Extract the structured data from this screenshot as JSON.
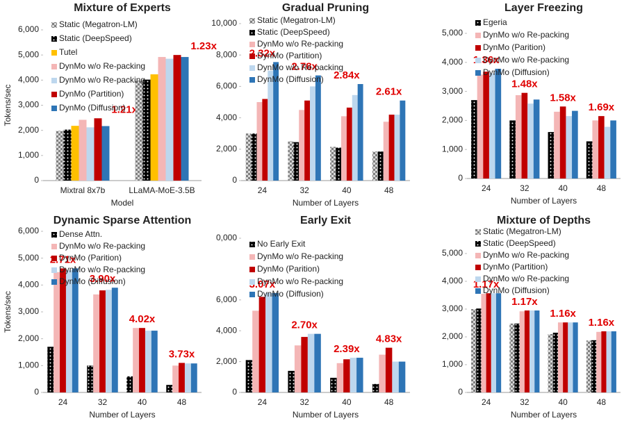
{
  "chart_data": [
    {
      "type": "bar",
      "title": "Mixture of Experts",
      "xlabel": "Model",
      "ylabel": "Tokens/sec",
      "legend": "upper left",
      "categories": [
        "Mixtral 8x7b",
        "LLaMA-MoE-3.5B"
      ],
      "ylim": [
        0,
        6000
      ],
      "yticks": [
        0,
        {
          "value": 1000,
          "label": "1,000"
        },
        {
          "value": 2000,
          "label": "2,000"
        },
        {
          "value": 3000,
          "label": "3,000"
        },
        {
          "value": 4000,
          "label": "4,000"
        },
        {
          "value": 5000,
          "label": "5,000"
        },
        {
          "value": 6000,
          "label": "6,000"
        }
      ],
      "annotations": [
        "1.21x",
        "1.23x"
      ],
      "series": [
        {
          "name": "Static (Megatron-LM)",
          "color": "#8c8c8c",
          "pattern": "checker",
          "values": [
            1980,
            3980
          ]
        },
        {
          "name": "Static (DeepSpeed)",
          "color": "#000000",
          "pattern": "dots",
          "values": [
            2030,
            4020
          ]
        },
        {
          "name": "Tutel",
          "color": "#ffc000",
          "values": [
            2180,
            4230
          ]
        },
        {
          "name": "DynMo w/o Re-packing",
          "color": "#f4b6b6",
          "values": [
            2420,
            4920
          ]
        },
        {
          "name": "DynMo w/o Re-packing",
          "color": "#bdd7ee",
          "values": [
            2120,
            4850
          ]
        },
        {
          "name": "DynMo (Partition)",
          "color": "#c00000",
          "values": [
            2480,
            5000
          ]
        },
        {
          "name": "DynMo (Diffusion)",
          "color": "#2e75b6",
          "values": [
            2170,
            4920
          ]
        }
      ]
    },
    {
      "type": "bar",
      "title": "Gradual Pruning",
      "xlabel": "Number of Layers",
      "legend": "upper left",
      "categories": [
        "24",
        "32",
        "40",
        "48"
      ],
      "ylim": [
        0,
        10000
      ],
      "yticks": [
        0,
        {
          "value": 2000,
          "label": "2,000"
        },
        {
          "value": 4000,
          "label": "4,000"
        },
        {
          "value": 6000,
          "label": "6,000"
        },
        {
          "value": 8000,
          "label": "8,000"
        },
        {
          "value": 10000,
          "label": "10,000"
        }
      ],
      "annotations": [
        "2.32x",
        "2.78x",
        "2.84x",
        "2.61x"
      ],
      "series": [
        {
          "name": "Static (Megatron-LM)",
          "color": "#8c8c8c",
          "pattern": "checker",
          "values": [
            3000,
            2500,
            2150,
            1850
          ]
        },
        {
          "name": "Static (DeepSpeed)",
          "color": "#000000",
          "pattern": "dots",
          "values": [
            3000,
            2450,
            2100,
            1850
          ]
        },
        {
          "name": "DynMo w/o Re-packing",
          "color": "#f4b6b6",
          "values": [
            5000,
            4500,
            4100,
            3750
          ]
        },
        {
          "name": "DynMo (Partition)",
          "color": "#c00000",
          "values": [
            5200,
            5100,
            4650,
            4200
          ]
        },
        {
          "name": "DynMo w/o Re-packing",
          "color": "#bdd7ee",
          "values": [
            7000,
            6000,
            5450,
            4200
          ]
        },
        {
          "name": "DynMo (Diffusion)",
          "color": "#2e75b6",
          "values": [
            7550,
            6700,
            6150,
            5100
          ]
        }
      ]
    },
    {
      "type": "bar",
      "title": "Layer Freezing",
      "xlabel": "Number of Layers",
      "legend": "upper left",
      "categories": [
        "24",
        "32",
        "40",
        "48"
      ],
      "ylim": [
        0,
        5000
      ],
      "yticks": [
        0,
        {
          "value": 1000,
          "label": "1,000"
        },
        {
          "value": 2000,
          "label": "2,000"
        },
        {
          "value": 3000,
          "label": "3,000"
        },
        {
          "value": 4000,
          "label": "4,000"
        },
        {
          "value": 5000,
          "label": "5,000"
        }
      ],
      "annotations": [
        "1.36x",
        "1.48x",
        "1.58x",
        "1.69x"
      ],
      "series": [
        {
          "name": "Egeria",
          "color": "#000000",
          "pattern": "dots",
          "values": [
            2700,
            2000,
            1600,
            1280
          ]
        },
        {
          "name": "DynMo w/o Re-packing",
          "color": "#f4b6b6",
          "values": [
            3580,
            2870,
            2300,
            2000
          ]
        },
        {
          "name": "DynMo (Parition)",
          "color": "#c00000",
          "values": [
            3680,
            2950,
            2480,
            2150
          ]
        },
        {
          "name": "DynMo w/o Re-packing",
          "color": "#bdd7ee",
          "values": [
            3620,
            2580,
            2150,
            1780
          ]
        },
        {
          "name": "DynMo (Diffusion)",
          "color": "#2e75b6",
          "values": [
            3780,
            2720,
            2330,
            2000
          ]
        }
      ]
    },
    {
      "type": "bar",
      "title": "Dynamic Sparse Attention",
      "xlabel": "Number of Layers",
      "ylabel": "Tokens/sec",
      "legend": "upper left",
      "categories": [
        "24",
        "32",
        "40",
        "48"
      ],
      "ylim": [
        0,
        6000
      ],
      "yticks": [
        0,
        {
          "value": 1000,
          "label": "1,000"
        },
        {
          "value": 2000,
          "label": "2,000"
        },
        {
          "value": 3000,
          "label": "3,000"
        },
        {
          "value": 4000,
          "label": "4,000"
        },
        {
          "value": 5000,
          "label": "5,000"
        },
        {
          "value": 6000,
          "label": "6,000"
        }
      ],
      "annotations": [
        "2.71x",
        "3.90x",
        "4.02x",
        "3.73x"
      ],
      "series": [
        {
          "name": "Dense Attn.",
          "color": "#000000",
          "pattern": "dots",
          "values": [
            1700,
            1000,
            600,
            280
          ]
        },
        {
          "name": "DynMo w/o Re-packing",
          "color": "#f4b6b6",
          "values": [
            4480,
            3650,
            2400,
            1000
          ]
        },
        {
          "name": "DynMo (Parition)",
          "color": "#c00000",
          "values": [
            4620,
            3800,
            2400,
            1100
          ]
        },
        {
          "name": "DynMo w/o Re-packing",
          "color": "#bdd7ee",
          "values": [
            4550,
            3820,
            2300,
            1080
          ]
        },
        {
          "name": "DynMo (Diffusion)",
          "color": "#2e75b6",
          "values": [
            4620,
            3900,
            2300,
            1080
          ]
        }
      ]
    },
    {
      "type": "bar",
      "title": "Early Exit",
      "xlabel": "Number of Layers",
      "legend": "upper left",
      "categories": [
        "24",
        "32",
        "40",
        "48"
      ],
      "ylim": [
        0,
        10000
      ],
      "yticks": [
        0,
        {
          "value": 2000,
          "label": "2,000"
        },
        {
          "value": 4000,
          "label": "4,000"
        },
        {
          "value": 6000,
          "label": "6,000"
        },
        {
          "value": 10000,
          "label": "0,000"
        }
      ],
      "annotations": [
        "3.07x",
        "2.70x",
        "2.39x",
        "4.83x"
      ],
      "series": [
        {
          "name": "No Early Exit",
          "color": "#000000",
          "pattern": "dots",
          "values": [
            2100,
            1400,
            950,
            550
          ]
        },
        {
          "name": "DynMo w/o Re-packing",
          "color": "#f4b6b6",
          "values": [
            5300,
            3050,
            1900,
            2450
          ]
        },
        {
          "name": "DynMo (Parition)",
          "color": "#c00000",
          "values": [
            6200,
            3600,
            2150,
            2900
          ]
        },
        {
          "name": "DynMo w/o Re-packing",
          "color": "#bdd7ee",
          "values": [
            6450,
            3800,
            2250,
            2000
          ]
        },
        {
          "name": "DynMo (Diffusion)",
          "color": "#2e75b6",
          "values": [
            6450,
            3800,
            2250,
            2000
          ]
        }
      ]
    },
    {
      "type": "bar",
      "title": "Mixture of Depths",
      "xlabel": "Number of Layers",
      "legend": "upper left",
      "categories": [
        "24",
        "32",
        "40",
        "48"
      ],
      "ylim": [
        0,
        5000
      ],
      "yticks": [
        0,
        {
          "value": 1000,
          "label": "1,000"
        },
        {
          "value": 2000,
          "label": "2,000"
        },
        {
          "value": 3000,
          "label": "3,000"
        },
        {
          "value": 4000,
          "label": "4,000"
        },
        {
          "value": 5000,
          "label": "5,000"
        }
      ],
      "annotations": [
        "1.17x",
        "1.17x",
        "1.16x",
        "1.16x"
      ],
      "series": [
        {
          "name": "Static (Megatron-LM)",
          "color": "#8c8c8c",
          "pattern": "checker",
          "values": [
            3000,
            2480,
            2100,
            1870
          ]
        },
        {
          "name": "Static (DeepSpeed)",
          "color": "#000000",
          "pattern": "dots",
          "values": [
            3020,
            2480,
            2150,
            1880
          ]
        },
        {
          "name": "DynMo w/o Re-packing",
          "color": "#f4b6b6",
          "values": [
            3550,
            2920,
            2520,
            2180
          ]
        },
        {
          "name": "DynMo (Partition)",
          "color": "#c00000",
          "values": [
            3570,
            2950,
            2520,
            2200
          ]
        },
        {
          "name": "DynMo w/o Re-packing",
          "color": "#bdd7ee",
          "values": [
            3570,
            2950,
            2520,
            2200
          ]
        },
        {
          "name": "DynMo (Diffusion)",
          "color": "#2e75b6",
          "values": [
            3570,
            2950,
            2520,
            2200
          ]
        }
      ]
    }
  ]
}
